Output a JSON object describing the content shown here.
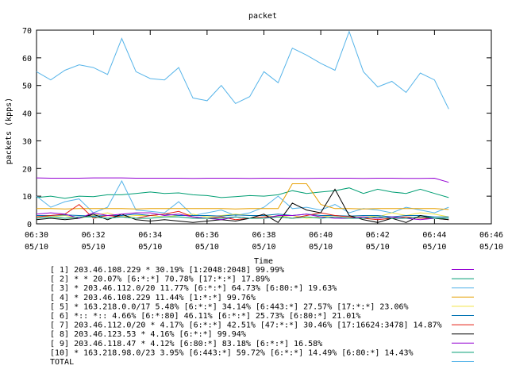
{
  "chart_data": {
    "type": "line",
    "title": "packet",
    "xlabel": "Time",
    "ylabel": "packets (kpps)",
    "ylim": [
      0,
      70
    ],
    "y_ticks": [
      0,
      10,
      20,
      30,
      40,
      50,
      60,
      70
    ],
    "x_range_minutes": [
      "06:30",
      "06:46"
    ],
    "x_ticks": [
      {
        "time": "06:30",
        "date": "05/10"
      },
      {
        "time": "06:32",
        "date": "05/10"
      },
      {
        "time": "06:34",
        "date": "05/10"
      },
      {
        "time": "06:36",
        "date": "05/10"
      },
      {
        "time": "06:38",
        "date": "05/10"
      },
      {
        "time": "06:40",
        "date": "05/10"
      },
      {
        "time": "06:42",
        "date": "05/10"
      },
      {
        "time": "06:44",
        "date": "05/10"
      },
      {
        "time": "06:46",
        "date": "05/10"
      }
    ],
    "x": [
      "06:30",
      "06:30:30",
      "06:31",
      "06:31:30",
      "06:32",
      "06:32:30",
      "06:33",
      "06:33:30",
      "06:34",
      "06:34:30",
      "06:35",
      "06:35:30",
      "06:36",
      "06:36:30",
      "06:37",
      "06:37:30",
      "06:38",
      "06:38:30",
      "06:39",
      "06:39:30",
      "06:40",
      "06:40:30",
      "06:41",
      "06:41:30",
      "06:42",
      "06:42:30",
      "06:43",
      "06:43:30",
      "06:44",
      "06:44:30"
    ],
    "legend_position": "bottom",
    "series": [
      {
        "name": "[ 1] 203.46.108.229 * 30.19%  [1:2048:2048] 99.99%",
        "color": "#9400d3",
        "values": [
          16.6,
          16.5,
          16.5,
          16.5,
          16.6,
          16.6,
          16.6,
          16.5,
          16.5,
          16.5,
          16.5,
          16.4,
          16.5,
          16.5,
          16.5,
          16.4,
          16.5,
          16.5,
          16.4,
          16.4,
          16.5,
          16.5,
          16.5,
          16.4,
          16.5,
          16.5,
          16.4,
          16.4,
          16.5,
          15.0
        ]
      },
      {
        "name": "[ 2] * * 20.07%  [6:*:*] 70.78% [17:*:*] 17.89%",
        "color": "#009e73",
        "values": [
          9.5,
          10.0,
          9.2,
          10.0,
          9.8,
          10.5,
          10.5,
          11.0,
          11.5,
          11.0,
          11.2,
          10.5,
          10.2,
          9.5,
          9.8,
          10.2,
          10.0,
          10.5,
          12.0,
          11.0,
          11.5,
          12.0,
          13.0,
          11.0,
          12.5,
          11.5,
          11.0,
          12.5,
          11.0,
          9.5
        ]
      },
      {
        "name": "[ 3] * 203.46.112.0/20 11.77%  [6:*:*] 64.73% [6:80:*] 19.63%",
        "color": "#56b4e9",
        "values": [
          10.0,
          6.0,
          8.0,
          9.0,
          4.0,
          6.0,
          15.5,
          5.0,
          4.5,
          4.0,
          8.0,
          3.0,
          4.0,
          5.0,
          3.0,
          4.0,
          6.0,
          10.0,
          5.5,
          6.0,
          5.0,
          7.0,
          4.0,
          5.5,
          5.0,
          4.0,
          6.0,
          5.0,
          4.0,
          6.0
        ]
      },
      {
        "name": "[ 4] * 203.46.108.229 11.44%  [1:*:*] 99.76%",
        "color": "#e69f00",
        "values": [
          5.5,
          5.5,
          5.4,
          5.5,
          5.5,
          5.5,
          5.5,
          5.4,
          5.5,
          5.5,
          5.5,
          5.5,
          5.5,
          5.5,
          5.4,
          5.5,
          5.5,
          5.5,
          14.5,
          14.5,
          7.0,
          5.5,
          5.5,
          5.4,
          5.5,
          5.5,
          5.5,
          5.5,
          5.5,
          5.2
        ]
      },
      {
        "name": "[ 5] * 163.218.0.0/17 5.48%  [6:*:*] 34.14% [6:443:*] 27.57% [17:*:*] 23.06%",
        "color": "#f0e442",
        "values": [
          3.0,
          2.5,
          3.0,
          2.0,
          3.0,
          4.0,
          2.5,
          3.0,
          3.0,
          2.5,
          3.0,
          3.5,
          2.5,
          3.0,
          3.5,
          3.0,
          3.0,
          2.5,
          3.0,
          2.0,
          2.5,
          3.0,
          2.5,
          3.0,
          2.5,
          4.0,
          3.0,
          4.0,
          3.5,
          2.5
        ]
      },
      {
        "name": "[ 6] *:: *:: 4.66%  [6:*:80] 46.11% [6:*:*] 25.73% [6:80:*] 21.01%",
        "color": "#0072b2",
        "values": [
          3.0,
          3.0,
          3.2,
          3.0,
          2.8,
          3.0,
          3.0,
          3.5,
          3.0,
          3.5,
          3.0,
          3.0,
          3.0,
          2.8,
          3.2,
          3.0,
          3.0,
          3.5,
          3.0,
          3.5,
          3.0,
          3.0,
          2.8,
          3.0,
          3.0,
          2.5,
          3.0,
          3.0,
          2.5,
          2.5
        ]
      },
      {
        "name": "[ 7] 203.46.112.0/20 * 4.17%  [6:*:*] 42.51% [47:*:*] 30.46% [17:16624:3478] 14.87%",
        "color": "#e51e10",
        "values": [
          2.5,
          3.0,
          3.5,
          7.0,
          2.0,
          3.0,
          2.5,
          2.0,
          3.0,
          3.5,
          4.5,
          2.5,
          2.0,
          2.5,
          1.5,
          2.0,
          2.5,
          2.5,
          2.0,
          3.0,
          4.0,
          3.0,
          2.5,
          2.0,
          1.5,
          2.0,
          2.5,
          2.0,
          2.0,
          1.5
        ]
      },
      {
        "name": "[ 8] 203.46.123.53 * 4.16%  [6:*:*] 99.94%",
        "color": "#000000",
        "values": [
          1.5,
          2.0,
          1.5,
          2.0,
          3.5,
          1.5,
          3.5,
          1.5,
          1.0,
          1.5,
          1.0,
          0.5,
          1.0,
          1.5,
          1.0,
          2.0,
          3.5,
          0.5,
          7.5,
          5.0,
          4.0,
          12.5,
          3.0,
          1.5,
          0.5,
          2.0,
          0.5,
          3.0,
          2.0,
          1.5
        ]
      },
      {
        "name": "[ 9] 203.46.118.47 * 4.12%  [6:80:*] 83.18% [6:*:*] 16.58%",
        "color": "#9400d3",
        "values": [
          3.5,
          4.0,
          3.5,
          2.0,
          4.0,
          3.0,
          3.5,
          4.0,
          4.0,
          3.0,
          3.5,
          2.5,
          2.0,
          1.5,
          2.5,
          2.0,
          2.0,
          3.0,
          3.0,
          3.5,
          2.5,
          2.0,
          2.0,
          2.5,
          2.0,
          2.5,
          2.0,
          1.5,
          2.0,
          2.0
        ]
      },
      {
        "name": "[10] * 163.218.98.0/23 3.95%  [6:443:*] 59.72% [6:*:*] 14.49% [6:80:*] 14.43%",
        "color": "#009e73",
        "values": [
          2.0,
          2.5,
          2.0,
          2.5,
          2.5,
          2.0,
          2.5,
          2.0,
          2.0,
          2.5,
          2.5,
          2.0,
          2.0,
          2.0,
          2.5,
          2.0,
          2.0,
          2.5,
          2.0,
          2.5,
          2.0,
          2.5,
          2.0,
          2.0,
          2.5,
          2.0,
          2.0,
          2.5,
          2.0,
          2.0
        ]
      },
      {
        "name": "TOTAL",
        "color": "#56b4e9",
        "values": [
          55.0,
          52.0,
          55.5,
          57.5,
          56.5,
          54.0,
          67.0,
          55.0,
          52.5,
          52.0,
          56.5,
          45.5,
          44.5,
          50.0,
          43.5,
          46.0,
          55.0,
          51.0,
          63.5,
          61.0,
          58.0,
          55.5,
          69.5,
          55.0,
          49.5,
          51.5,
          47.5,
          54.5,
          52.0,
          41.5
        ]
      }
    ]
  }
}
